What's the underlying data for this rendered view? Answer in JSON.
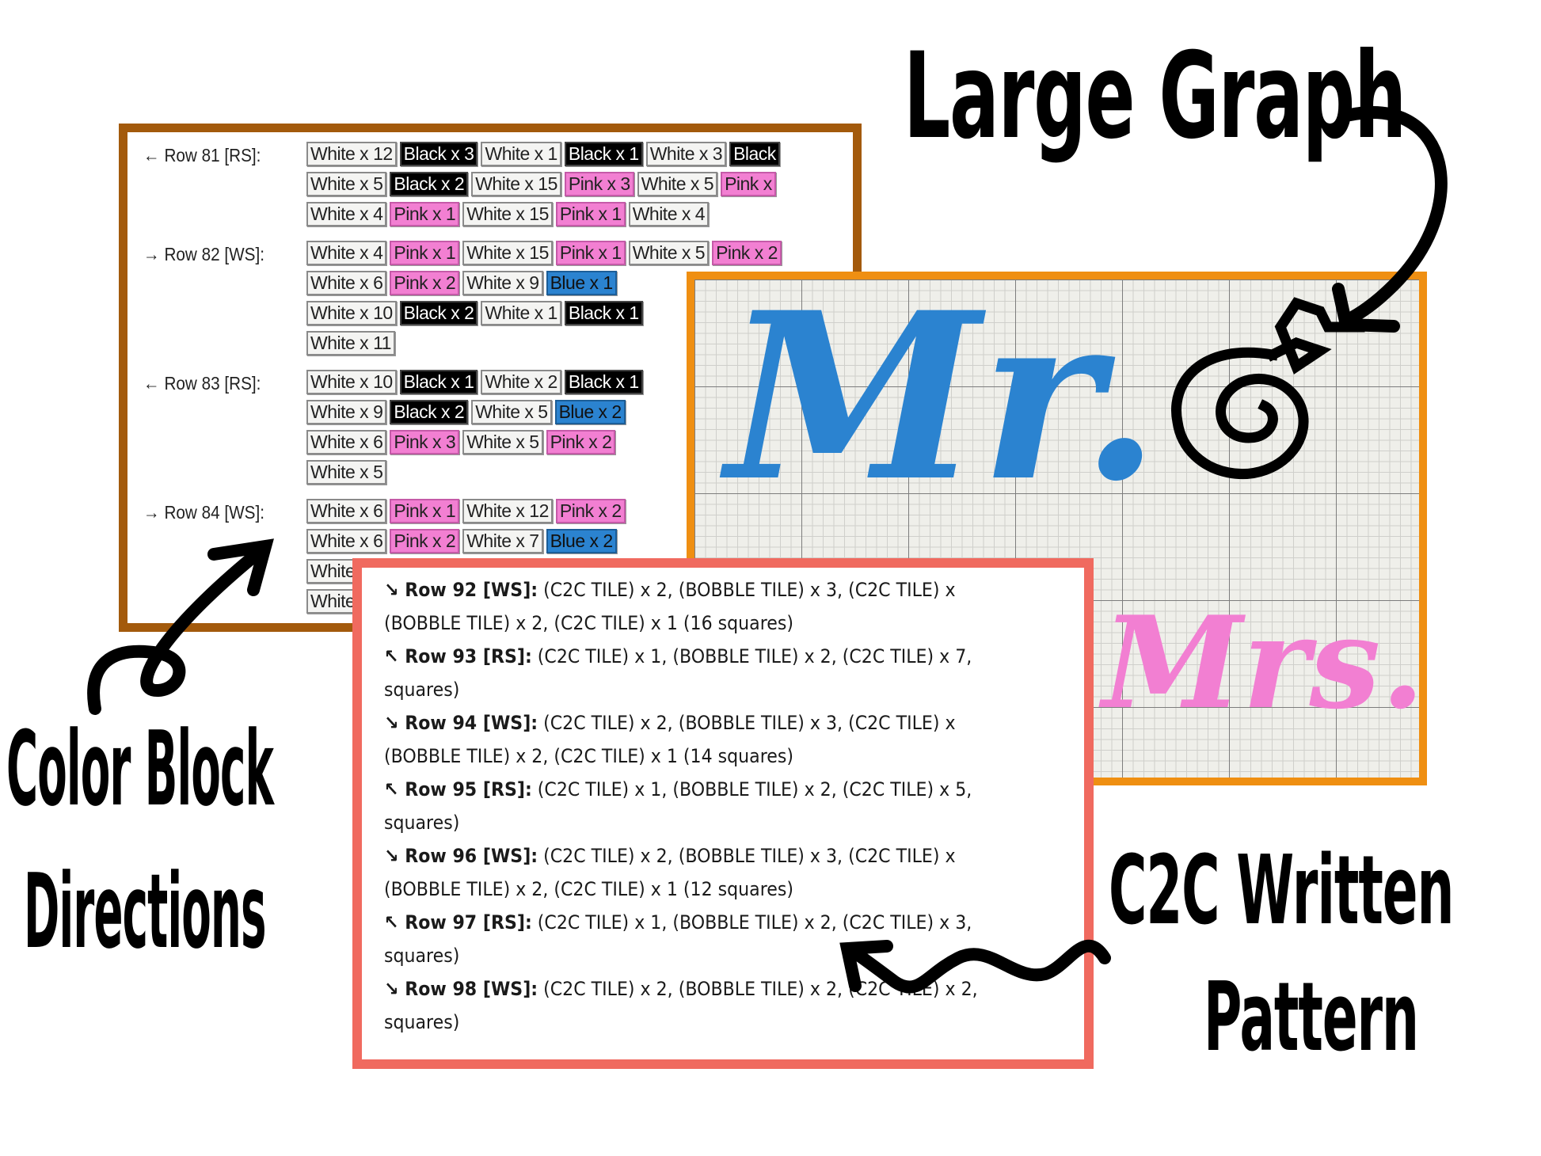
{
  "labels": {
    "large_graph": "Large Graph",
    "color_block_line1": "Color Block",
    "color_block_line2": "Directions",
    "c2c_line1": "C2C Written",
    "c2c_line2": "Pattern"
  },
  "colors": {
    "white": "#f4f4f2",
    "black": "#000000",
    "pink": "#f27fd2",
    "blue": "#2b83d0",
    "brown_frame": "#a35a0c",
    "orange_frame": "#ef8f12",
    "coral_frame": "#f06a5f"
  },
  "color_block_rows": [
    {
      "label": "← Row 81 [RS]:",
      "lines": [
        [
          {
            "t": "White x 12",
            "c": "white"
          },
          {
            "t": "Black x 3",
            "c": "black"
          },
          {
            "t": "White x 1",
            "c": "white"
          },
          {
            "t": "Black x 1",
            "c": "black"
          },
          {
            "t": "White x 3",
            "c": "white"
          },
          {
            "t": "Black",
            "c": "black"
          }
        ],
        [
          {
            "t": "White x 5",
            "c": "white"
          },
          {
            "t": "Black x 2",
            "c": "black"
          },
          {
            "t": "White x 15",
            "c": "white"
          },
          {
            "t": "Pink x 3",
            "c": "pink"
          },
          {
            "t": "White x 5",
            "c": "white"
          },
          {
            "t": "Pink x",
            "c": "pink"
          }
        ],
        [
          {
            "t": "White x 4",
            "c": "white"
          },
          {
            "t": "Pink x 1",
            "c": "pink"
          },
          {
            "t": "White x 15",
            "c": "white"
          },
          {
            "t": "Pink x 1",
            "c": "pink"
          },
          {
            "t": "White x 4",
            "c": "white"
          }
        ]
      ]
    },
    {
      "label": "→ Row 82 [WS]:",
      "lines": [
        [
          {
            "t": "White x 4",
            "c": "white"
          },
          {
            "t": "Pink x 1",
            "c": "pink"
          },
          {
            "t": "White x 15",
            "c": "white"
          },
          {
            "t": "Pink x 1",
            "c": "pink"
          },
          {
            "t": "White x 5",
            "c": "white"
          },
          {
            "t": "Pink x 2",
            "c": "pink"
          }
        ],
        [
          {
            "t": "White x 6",
            "c": "white"
          },
          {
            "t": "Pink x 2",
            "c": "pink"
          },
          {
            "t": "White x 9",
            "c": "white"
          },
          {
            "t": "Blue x 1",
            "c": "blue"
          }
        ],
        [
          {
            "t": "White x 10",
            "c": "white"
          },
          {
            "t": "Black x 2",
            "c": "black"
          },
          {
            "t": "White x 1",
            "c": "white"
          },
          {
            "t": "Black x 1",
            "c": "black"
          }
        ],
        [
          {
            "t": "White x 11",
            "c": "white"
          }
        ]
      ]
    },
    {
      "label": "← Row 83 [RS]:",
      "lines": [
        [
          {
            "t": "White x 10",
            "c": "white"
          },
          {
            "t": "Black x 1",
            "c": "black"
          },
          {
            "t": "White x 2",
            "c": "white"
          },
          {
            "t": "Black x 1",
            "c": "black"
          }
        ],
        [
          {
            "t": "White x 9",
            "c": "white"
          },
          {
            "t": "Black x 2",
            "c": "black"
          },
          {
            "t": "White x 5",
            "c": "white"
          },
          {
            "t": "Blue x 2",
            "c": "blue"
          }
        ],
        [
          {
            "t": "White x 6",
            "c": "white"
          },
          {
            "t": "Pink x 3",
            "c": "pink"
          },
          {
            "t": "White x 5",
            "c": "white"
          },
          {
            "t": "Pink x 2",
            "c": "pink"
          }
        ],
        [
          {
            "t": "White x 5",
            "c": "white"
          }
        ]
      ]
    },
    {
      "label": "→ Row 84 [WS]:",
      "lines": [
        [
          {
            "t": "White x 6",
            "c": "white"
          },
          {
            "t": "Pink x 1",
            "c": "pink"
          },
          {
            "t": "White x 12",
            "c": "white"
          },
          {
            "t": "Pink x 2",
            "c": "pink"
          }
        ],
        [
          {
            "t": "White x 6",
            "c": "white"
          },
          {
            "t": "Pink x 2",
            "c": "pink"
          },
          {
            "t": "White x 7",
            "c": "white"
          },
          {
            "t": "Blue x 2",
            "c": "blue"
          }
        ],
        [
          {
            "t": "White",
            "c": "white"
          }
        ],
        [
          {
            "t": "White",
            "c": "white"
          }
        ]
      ]
    }
  ],
  "graph": {
    "words": [
      "Mr.",
      "&",
      "Mrs."
    ],
    "word_colors": [
      "#2b83d0",
      "#000000",
      "#f27fd2"
    ]
  },
  "written_pattern": [
    {
      "bold": "↘ Row 92 [WS]:",
      "text": " (C2C TILE) x 2, (BOBBLE TILE) x 3, (C2C TILE) x"
    },
    {
      "bold": "",
      "text": "(BOBBLE TILE) x 2, (C2C TILE) x 1 (16 squares)"
    },
    {
      "bold": "↖ Row 93 [RS]:",
      "text": " (C2C TILE) x 1, (BOBBLE TILE) x 2, (C2C TILE) x 7,"
    },
    {
      "bold": "",
      "text": "squares)"
    },
    {
      "bold": "↘ Row 94 [WS]:",
      "text": " (C2C TILE) x 2, (BOBBLE TILE) x 3, (C2C TILE) x"
    },
    {
      "bold": "",
      "text": "(BOBBLE TILE) x 2, (C2C TILE) x 1 (14 squares)"
    },
    {
      "bold": "↖ Row 95 [RS]:",
      "text": " (C2C TILE) x 1, (BOBBLE TILE) x 2, (C2C TILE) x 5,"
    },
    {
      "bold": "",
      "text": "squares)"
    },
    {
      "bold": "↘ Row 96 [WS]:",
      "text": " (C2C TILE) x 2, (BOBBLE TILE) x 3, (C2C TILE) x"
    },
    {
      "bold": "",
      "text": "(BOBBLE TILE) x 2, (C2C TILE) x 1 (12 squares)"
    },
    {
      "bold": "↖ Row 97 [RS]:",
      "text": " (C2C TILE) x 1, (BOBBLE TILE) x 2, (C2C TILE) x 3,"
    },
    {
      "bold": "",
      "text": "squares)"
    },
    {
      "bold": "↘ Row 98 [WS]:",
      "text": " (C2C TILE) x 2, (BOBBLE TILE) x 2, (C2C TILE) x 2,"
    },
    {
      "bold": "",
      "text": "squares)"
    }
  ]
}
